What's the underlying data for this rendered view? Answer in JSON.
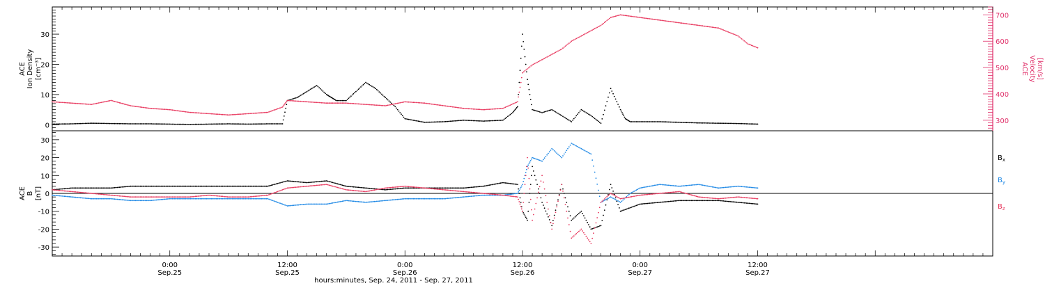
{
  "colors": {
    "black": "#000000",
    "pink": "#e8385e",
    "blue": "#1e88e5",
    "axis_pink": "#e0306a"
  },
  "chart_data": [
    {
      "type": "scatter",
      "xlabel": "hours:minutes, Sep. 24, 2011 - Sep. 27, 2011",
      "x_range_hours": [
        0,
        96
      ],
      "x_ticks": [
        {
          "t": 12,
          "time": "0:00",
          "date": "Sep.25"
        },
        {
          "t": 24,
          "time": "12:00",
          "date": "Sep.25"
        },
        {
          "t": 36,
          "time": "0:00",
          "date": "Sep.26"
        },
        {
          "t": 48,
          "time": "12:00",
          "date": "Sep.26"
        },
        {
          "t": 60,
          "time": "0:00",
          "date": "Sep.27"
        },
        {
          "t": 72,
          "time": "12:00",
          "date": "Sep.27"
        }
      ],
      "ylabel_left": [
        "ACE",
        "Ion Density",
        "[cm⁻³]"
      ],
      "ylabel_right": [
        "ACE",
        "Velocity",
        "[km/s]"
      ],
      "ylim_left": [
        -2,
        39
      ],
      "ylim_right": [
        260,
        730
      ],
      "yticks_left": [
        0,
        10,
        20,
        30
      ],
      "yticks_right": [
        300,
        400,
        500,
        600,
        700
      ],
      "series": [
        {
          "axis": "left",
          "color": "black",
          "x": [
            0,
            2,
            4,
            6,
            8,
            10,
            12,
            14,
            16,
            18,
            20,
            22,
            23.5,
            24,
            25,
            26,
            27,
            28,
            28.5,
            29,
            30,
            31,
            32,
            33,
            34,
            35,
            36,
            38,
            40,
            42,
            44,
            46,
            47,
            47.5,
            48,
            48.5,
            49,
            50,
            51,
            52,
            53,
            54,
            55,
            56,
            57,
            58,
            58.5,
            59,
            60,
            62,
            64,
            66,
            68,
            70,
            72
          ],
          "y": [
            0.2,
            0.3,
            0.5,
            0.4,
            0.3,
            0.3,
            0.2,
            0.1,
            0.2,
            0.3,
            0.2,
            0.3,
            0.3,
            8,
            9,
            11,
            13,
            10,
            9,
            8,
            8,
            11,
            14,
            12,
            9,
            6,
            2,
            0.8,
            1,
            1.5,
            1.2,
            1.5,
            4,
            6,
            30,
            15,
            5,
            4,
            5,
            3,
            1,
            5,
            3,
            0.5,
            12,
            5,
            2,
            1,
            1,
            1,
            0.8,
            0.6,
            0.5,
            0.4,
            0.2
          ]
        },
        {
          "axis": "right",
          "color": "pink",
          "x": [
            0,
            2,
            4,
            6,
            8,
            10,
            12,
            14,
            16,
            18,
            20,
            22,
            23.5,
            24,
            26,
            28,
            30,
            32,
            34,
            36,
            38,
            40,
            42,
            44,
            46,
            47.5,
            48,
            49,
            50,
            51,
            52,
            53,
            54,
            55,
            56,
            57,
            58,
            59,
            60,
            62,
            64,
            66,
            68,
            70,
            71,
            72
          ],
          "y": [
            370,
            365,
            360,
            375,
            355,
            345,
            340,
            330,
            325,
            320,
            325,
            330,
            350,
            375,
            370,
            365,
            365,
            360,
            355,
            370,
            365,
            355,
            345,
            340,
            345,
            370,
            480,
            510,
            530,
            550,
            570,
            600,
            620,
            640,
            660,
            690,
            700,
            695,
            690,
            680,
            670,
            660,
            650,
            620,
            590,
            575
          ]
        }
      ]
    },
    {
      "type": "scatter",
      "ylabel": [
        "ACE",
        "B",
        "[nT]"
      ],
      "ylim": [
        -35,
        35
      ],
      "yticks": [
        -30,
        -20,
        -10,
        0,
        10,
        20,
        30
      ],
      "legend": [
        "Bx",
        "By",
        "Bz"
      ],
      "series": [
        {
          "name": "Bx",
          "color": "black",
          "x": [
            0,
            2,
            4,
            6,
            8,
            10,
            12,
            14,
            16,
            18,
            20,
            22,
            24,
            26,
            28,
            30,
            32,
            34,
            36,
            38,
            40,
            42,
            44,
            46,
            47.5,
            48,
            48.5,
            49,
            50,
            51,
            52,
            53,
            54,
            55,
            56,
            57,
            58,
            59,
            60,
            62,
            64,
            66,
            68,
            70,
            72
          ],
          "y": [
            2,
            3,
            3,
            3,
            4,
            4,
            4,
            4,
            4,
            4,
            4,
            4,
            7,
            6,
            7,
            4,
            3,
            2,
            3,
            3,
            3,
            3,
            4,
            6,
            5,
            -10,
            -15,
            15,
            -5,
            -18,
            5,
            -15,
            -10,
            -20,
            -18,
            5,
            -10,
            -8,
            -6,
            -5,
            -4,
            -4,
            -4,
            -5,
            -6
          ]
        },
        {
          "name": "By",
          "color": "blue",
          "x": [
            0,
            2,
            4,
            6,
            8,
            10,
            12,
            14,
            16,
            18,
            20,
            22,
            24,
            26,
            28,
            30,
            32,
            34,
            36,
            38,
            40,
            42,
            44,
            46,
            47.5,
            48,
            48.5,
            49,
            50,
            51,
            52,
            53,
            54,
            55,
            56,
            57,
            58,
            59,
            60,
            62,
            64,
            66,
            68,
            70,
            72
          ],
          "y": [
            -1,
            -2,
            -3,
            -3,
            -4,
            -4,
            -3,
            -3,
            -3,
            -3,
            -3,
            -3,
            -7,
            -6,
            -6,
            -4,
            -5,
            -4,
            -3,
            -3,
            -3,
            -2,
            -1,
            -1,
            0,
            5,
            15,
            20,
            18,
            25,
            20,
            28,
            25,
            22,
            -5,
            -2,
            -5,
            0,
            3,
            5,
            4,
            5,
            3,
            4,
            3
          ]
        },
        {
          "name": "Bz",
          "color": "pink",
          "x": [
            0,
            2,
            4,
            6,
            8,
            10,
            12,
            14,
            16,
            18,
            20,
            22,
            24,
            26,
            28,
            30,
            32,
            34,
            36,
            38,
            40,
            42,
            44,
            46,
            47.5,
            48,
            48.5,
            49,
            50,
            51,
            52,
            53,
            54,
            55,
            56,
            57,
            58,
            59,
            60,
            62,
            64,
            66,
            68,
            70,
            72
          ],
          "y": [
            2,
            1,
            0,
            -1,
            -2,
            -2,
            -2,
            -2,
            -1,
            -2,
            -2,
            -1,
            3,
            4,
            5,
            2,
            1,
            3,
            4,
            3,
            2,
            1,
            0,
            -1,
            -2,
            -10,
            20,
            -15,
            10,
            -20,
            5,
            -25,
            -20,
            -28,
            -5,
            0,
            -3,
            -2,
            -1,
            0,
            1,
            -2,
            -3,
            -2,
            -3
          ]
        }
      ]
    }
  ]
}
